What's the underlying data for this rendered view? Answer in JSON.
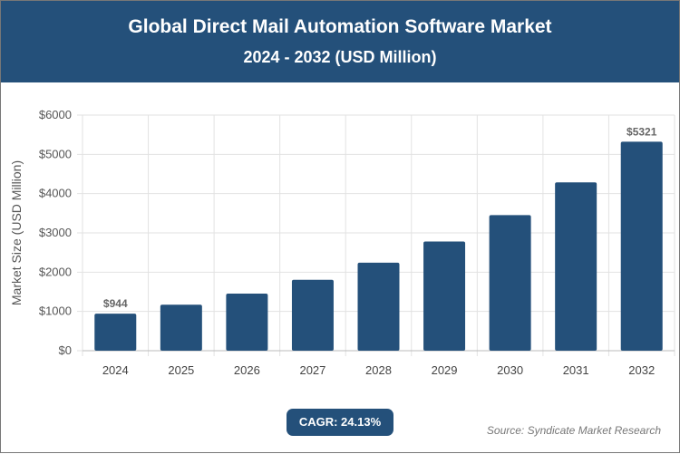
{
  "header": {
    "title": "Global Direct Mail Automation Software Market",
    "subtitle": "2024 - 2032 (USD Million)"
  },
  "chart_data": {
    "type": "bar",
    "categories": [
      "2024",
      "2025",
      "2026",
      "2027",
      "2028",
      "2029",
      "2030",
      "2031",
      "2032"
    ],
    "values": [
      944,
      1172,
      1455,
      1806,
      2241,
      2782,
      3453,
      4286,
      5321
    ],
    "data_labels": {
      "0": "$944",
      "8": "$5321"
    },
    "ylabel": "Market Size (USD Million)",
    "xlabel": "",
    "ylim": [
      0,
      6000
    ],
    "yticks": [
      "$0",
      "$1000",
      "$2000",
      "$3000",
      "$4000",
      "$5000",
      "$6000"
    ],
    "grid": true,
    "bar_color": "#24507a"
  },
  "footer": {
    "cagr": "CAGR: 24.13%",
    "source": "Source: Syndicate Market Research"
  }
}
